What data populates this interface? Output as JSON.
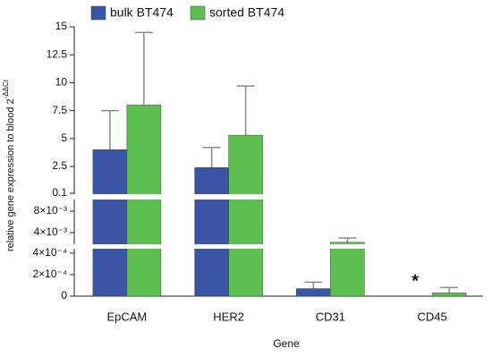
{
  "chart_data": {
    "type": "bar",
    "categories": [
      "EpCAM",
      "HER2",
      "CD31",
      "CD45"
    ],
    "series": [
      {
        "name": "bulk BT474",
        "color": "#3b55a6",
        "values": [
          4,
          2.4,
          7e-05,
          null
        ],
        "errors": [
          3.5,
          1.8,
          6e-05,
          null
        ]
      },
      {
        "name": "sorted BT474",
        "color": "#5cbf4f",
        "values": [
          8,
          5.3,
          0.0022,
          3e-05
        ],
        "errors": [
          6.5,
          4.4,
          0.0008,
          5e-05
        ]
      }
    ],
    "y_segments": [
      {
        "ylim": [
          0,
          0.00044
        ],
        "yticks": [
          0,
          {
            "value": 0.0002,
            "label": "2×10⁻⁴"
          },
          {
            "value": 0.0004,
            "label": "4×10⁻⁴"
          }
        ]
      },
      {
        "ylim": [
          0.002,
          0.01
        ],
        "yticks": [
          {
            "value": 0.004,
            "label": "4×10⁻³"
          },
          {
            "value": 0.008,
            "label": "8×10⁻³"
          }
        ]
      },
      {
        "ylim": [
          0.1,
          15
        ],
        "yticks": [
          0.1,
          2.5,
          5,
          7.5,
          10,
          12.5,
          15
        ]
      }
    ],
    "y_label": "relative gene expression to blood 2",
    "y_label_sup": "-ΔΔCt",
    "x_label": "Gene",
    "annotation": "*",
    "error_color": "#8a8a8a"
  }
}
